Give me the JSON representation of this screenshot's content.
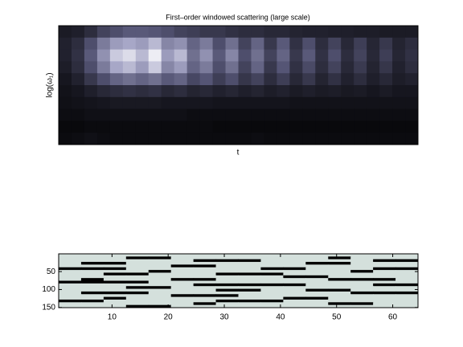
{
  "chart_data": [
    {
      "type": "heatmap",
      "title": "First–order windowed scattering (large scale)",
      "xlabel": "t",
      "ylabel": "log(ω₁)",
      "colormap": "bone",
      "z": [
        [
          0.12,
          0.14,
          0.2,
          0.3,
          0.35,
          0.4,
          0.4,
          0.38,
          0.35,
          0.3,
          0.28,
          0.25,
          0.25,
          0.22,
          0.2,
          0.2,
          0.18,
          0.18,
          0.16,
          0.15,
          0.15,
          0.14,
          0.14,
          0.13,
          0.13,
          0.12,
          0.12,
          0.12
        ],
        [
          0.15,
          0.2,
          0.35,
          0.55,
          0.7,
          0.75,
          0.7,
          0.8,
          0.6,
          0.65,
          0.45,
          0.55,
          0.35,
          0.5,
          0.3,
          0.45,
          0.25,
          0.4,
          0.22,
          0.35,
          0.2,
          0.3,
          0.18,
          0.28,
          0.17,
          0.25,
          0.16,
          0.2
        ],
        [
          0.15,
          0.22,
          0.4,
          0.65,
          0.85,
          0.9,
          0.8,
          0.95,
          0.7,
          0.8,
          0.5,
          0.65,
          0.4,
          0.6,
          0.35,
          0.5,
          0.3,
          0.45,
          0.25,
          0.4,
          0.22,
          0.35,
          0.2,
          0.3,
          0.18,
          0.28,
          0.17,
          0.22
        ],
        [
          0.13,
          0.2,
          0.35,
          0.55,
          0.75,
          0.8,
          0.7,
          0.85,
          0.6,
          0.7,
          0.45,
          0.55,
          0.35,
          0.5,
          0.3,
          0.45,
          0.25,
          0.38,
          0.22,
          0.33,
          0.2,
          0.3,
          0.18,
          0.26,
          0.16,
          0.24,
          0.15,
          0.2
        ],
        [
          0.1,
          0.15,
          0.25,
          0.35,
          0.45,
          0.5,
          0.45,
          0.5,
          0.4,
          0.45,
          0.32,
          0.38,
          0.28,
          0.35,
          0.24,
          0.3,
          0.2,
          0.28,
          0.18,
          0.25,
          0.16,
          0.22,
          0.15,
          0.2,
          0.14,
          0.18,
          0.13,
          0.15
        ],
        [
          0.08,
          0.1,
          0.14,
          0.18,
          0.2,
          0.22,
          0.2,
          0.22,
          0.18,
          0.2,
          0.16,
          0.18,
          0.15,
          0.17,
          0.14,
          0.16,
          0.13,
          0.15,
          0.12,
          0.14,
          0.12,
          0.13,
          0.11,
          0.12,
          0.1,
          0.12,
          0.1,
          0.1
        ],
        [
          0.07,
          0.08,
          0.09,
          0.1,
          0.11,
          0.11,
          0.11,
          0.11,
          0.1,
          0.1,
          0.1,
          0.1,
          0.09,
          0.09,
          0.09,
          0.09,
          0.09,
          0.09,
          0.08,
          0.08,
          0.08,
          0.08,
          0.08,
          0.08,
          0.08,
          0.08,
          0.08,
          0.08
        ],
        [
          0.06,
          0.06,
          0.07,
          0.07,
          0.07,
          0.07,
          0.07,
          0.07,
          0.07,
          0.07,
          0.06,
          0.06,
          0.06,
          0.06,
          0.06,
          0.06,
          0.06,
          0.06,
          0.06,
          0.06,
          0.06,
          0.06,
          0.06,
          0.06,
          0.06,
          0.06,
          0.06,
          0.06
        ],
        [
          0.04,
          0.04,
          0.05,
          0.05,
          0.05,
          0.05,
          0.05,
          0.05,
          0.05,
          0.05,
          0.05,
          0.05,
          0.04,
          0.04,
          0.04,
          0.04,
          0.04,
          0.04,
          0.04,
          0.04,
          0.04,
          0.04,
          0.04,
          0.04,
          0.04,
          0.04,
          0.04,
          0.04
        ],
        [
          0.05,
          0.06,
          0.07,
          0.06,
          0.05,
          0.05,
          0.05,
          0.05,
          0.05,
          0.05,
          0.05,
          0.05,
          0.05,
          0.05,
          0.05,
          0.06,
          0.05,
          0.05,
          0.05,
          0.05,
          0.05,
          0.05,
          0.05,
          0.05,
          0.05,
          0.05,
          0.05,
          0.05
        ]
      ]
    },
    {
      "type": "binary-image",
      "colors": [
        "#000000",
        "#d4e0dc"
      ],
      "xlim": [
        0.5,
        64.5
      ],
      "ylim": [
        0.5,
        150.5
      ],
      "xticks": [
        10,
        20,
        30,
        40,
        50,
        60
      ],
      "yticks": [
        50,
        100,
        150
      ],
      "z": [
        [
          1,
          1,
          1,
          1,
          1,
          1,
          1,
          1,
          1,
          1,
          1,
          1,
          1,
          1,
          1,
          1
        ],
        [
          1,
          1,
          1,
          0,
          0,
          1,
          1,
          1,
          1,
          1,
          1,
          1,
          0,
          1,
          1,
          1
        ],
        [
          1,
          1,
          1,
          1,
          1,
          1,
          0,
          0,
          0,
          1,
          1,
          1,
          1,
          1,
          0,
          0
        ],
        [
          1,
          0,
          0,
          1,
          1,
          1,
          1,
          1,
          1,
          1,
          1,
          0,
          0,
          1,
          1,
          1
        ],
        [
          1,
          1,
          1,
          1,
          1,
          0,
          0,
          1,
          1,
          1,
          1,
          1,
          1,
          1,
          1,
          1
        ],
        [
          0,
          0,
          0,
          1,
          1,
          1,
          1,
          1,
          1,
          0,
          0,
          1,
          1,
          1,
          0,
          0
        ],
        [
          1,
          1,
          1,
          1,
          0,
          1,
          1,
          1,
          1,
          1,
          1,
          1,
          1,
          0,
          1,
          1
        ],
        [
          1,
          1,
          0,
          0,
          1,
          1,
          1,
          0,
          0,
          0,
          1,
          1,
          1,
          1,
          1,
          1
        ],
        [
          1,
          1,
          1,
          1,
          1,
          1,
          1,
          1,
          1,
          1,
          0,
          0,
          1,
          1,
          1,
          1
        ],
        [
          1,
          0,
          1,
          1,
          1,
          0,
          0,
          1,
          1,
          1,
          1,
          1,
          0,
          0,
          0,
          1
        ],
        [
          0,
          0,
          0,
          0,
          1,
          1,
          1,
          1,
          1,
          1,
          1,
          1,
          1,
          1,
          1,
          1
        ],
        [
          1,
          1,
          1,
          1,
          1,
          1,
          0,
          0,
          0,
          0,
          0,
          1,
          1,
          1,
          0,
          0
        ],
        [
          1,
          1,
          1,
          0,
          0,
          1,
          1,
          1,
          1,
          1,
          1,
          1,
          1,
          1,
          1,
          1
        ],
        [
          1,
          1,
          1,
          1,
          1,
          1,
          1,
          0,
          0,
          1,
          1,
          0,
          0,
          1,
          1,
          1
        ],
        [
          1,
          0,
          0,
          0,
          1,
          1,
          1,
          1,
          1,
          1,
          1,
          1,
          1,
          0,
          0,
          0
        ],
        [
          1,
          1,
          1,
          1,
          1,
          0,
          0,
          0,
          1,
          1,
          1,
          1,
          1,
          1,
          1,
          1
        ],
        [
          1,
          1,
          0,
          1,
          1,
          1,
          1,
          1,
          1,
          1,
          0,
          0,
          1,
          1,
          1,
          1
        ],
        [
          0,
          0,
          1,
          1,
          1,
          1,
          1,
          0,
          0,
          0,
          1,
          1,
          1,
          1,
          1,
          1
        ],
        [
          1,
          1,
          1,
          1,
          1,
          1,
          0,
          1,
          1,
          1,
          1,
          1,
          0,
          0,
          1,
          1
        ],
        [
          1,
          1,
          1,
          0,
          0,
          1,
          1,
          1,
          1,
          1,
          1,
          1,
          1,
          1,
          1,
          1
        ]
      ]
    }
  ]
}
